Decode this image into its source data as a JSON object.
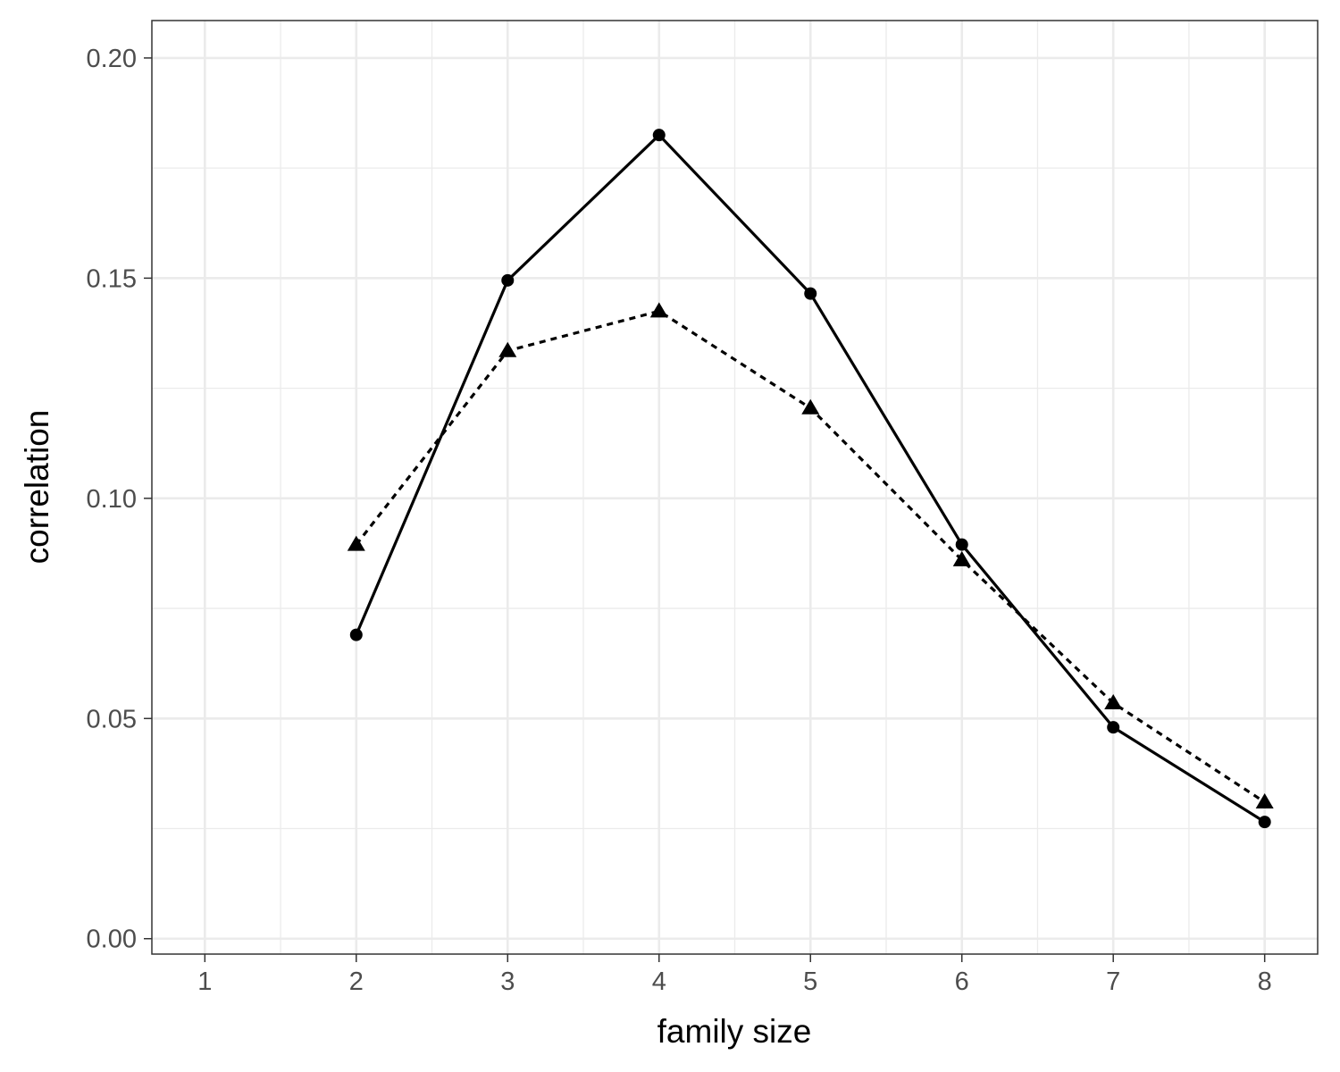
{
  "chart_data": {
    "type": "line",
    "title": "",
    "xlabel": "family size",
    "ylabel": "correlation",
    "x": [
      2,
      3,
      4,
      5,
      6,
      7,
      8
    ],
    "xlim": [
      0.65,
      8.35
    ],
    "ylim": [
      -0.0035,
      0.2085
    ],
    "xticks": [
      1,
      2,
      3,
      4,
      5,
      6,
      7,
      8
    ],
    "xtick_labels": [
      "1",
      "2",
      "3",
      "4",
      "5",
      "6",
      "7",
      "8"
    ],
    "yticks": [
      0.0,
      0.05,
      0.1,
      0.15,
      0.2
    ],
    "ytick_labels": [
      "0.00",
      "0.05",
      "0.10",
      "0.15",
      "0.20"
    ],
    "grid": true,
    "legend": "none",
    "series": [
      {
        "values": [
          0.069,
          0.1495,
          0.1825,
          0.1465,
          0.0895,
          0.048,
          0.0265
        ],
        "line_style": "solid",
        "marker": "circle",
        "color": "#000000"
      },
      {
        "values": [
          0.0895,
          0.1335,
          0.1425,
          0.1205,
          0.086,
          0.0535,
          0.031
        ],
        "line_style": "dotted",
        "marker": "triangle",
        "color": "#000000"
      }
    ]
  }
}
